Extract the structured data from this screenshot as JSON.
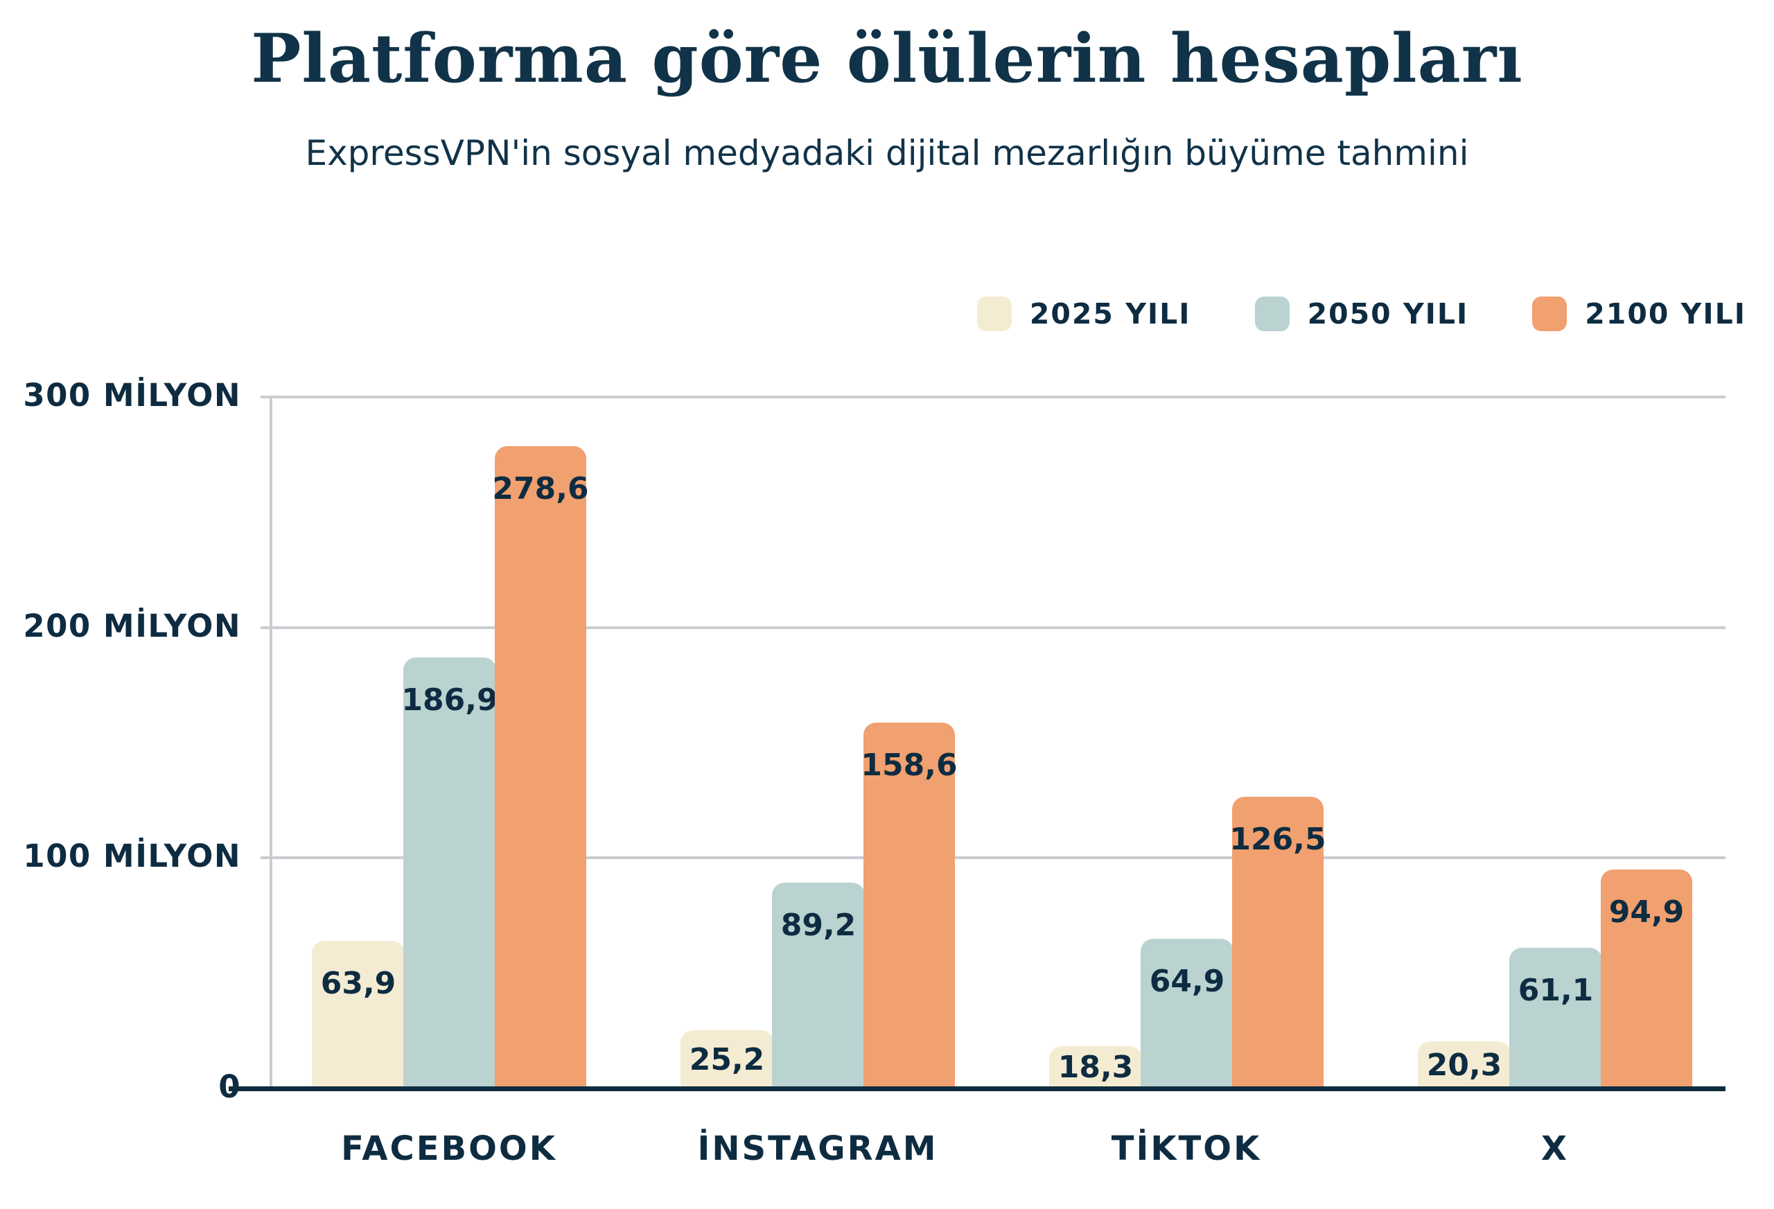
{
  "header": {
    "title": "Platforma göre ölülerin hesapları",
    "subtitle": "ExpressVPN'in sosyal medyadaki dijital mezarlığın büyüme tahmini"
  },
  "legend": {
    "position": "top-right",
    "items": [
      {
        "label": "2025 YILI",
        "color": "#F3ECD2"
      },
      {
        "label": "2050 YILI",
        "color": "#BAD2D0"
      },
      {
        "label": "2100 YILI",
        "color": "#F1A06F"
      }
    ]
  },
  "chart_data": {
    "type": "bar",
    "title": "Platforma göre ölülerin hesapları",
    "subtitle": "ExpressVPN'in sosyal medyadaki dijital mezarlığın büyüme tahmini",
    "categories": [
      "FACEBOOK",
      "İNSTAGRAM",
      "TİKTOK",
      "X"
    ],
    "series": [
      {
        "name": "2025 YILI",
        "color": "#F3ECD2",
        "values": [
          63.9,
          25.2,
          18.3,
          20.3
        ],
        "value_labels": [
          "63,9",
          "25,2",
          "18,3",
          "20,3"
        ]
      },
      {
        "name": "2050 YILI",
        "color": "#BAD2D0",
        "values": [
          186.9,
          89.2,
          64.9,
          61.1
        ],
        "value_labels": [
          "186,9",
          "89,2",
          "64,9",
          "61,1"
        ]
      },
      {
        "name": "2100 YILI",
        "color": "#F1A06F",
        "values": [
          278.6,
          158.6,
          126.5,
          94.9
        ],
        "value_labels": [
          "278,6",
          "158,6",
          "126,5",
          "94,9"
        ]
      }
    ],
    "y_axis": {
      "unit": "milyon",
      "ylim": [
        0,
        300
      ],
      "grid": true,
      "ticks": [
        {
          "value": 300,
          "label": "300 MİLYON"
        },
        {
          "value": 200,
          "label": "200 MİLYON"
        },
        {
          "value": 100,
          "label": "100 MİLYON"
        },
        {
          "value": 0,
          "label": "0"
        }
      ]
    },
    "xlabel": "",
    "ylabel": "",
    "legend_position": "top-right",
    "decimal_separator": ","
  },
  "colors": {
    "background": "#FFFFFF",
    "text": "#0E2C41",
    "title_text": "#113349",
    "gridline": "#C9CDD2",
    "axis_baseline": "#0D2C3F"
  }
}
